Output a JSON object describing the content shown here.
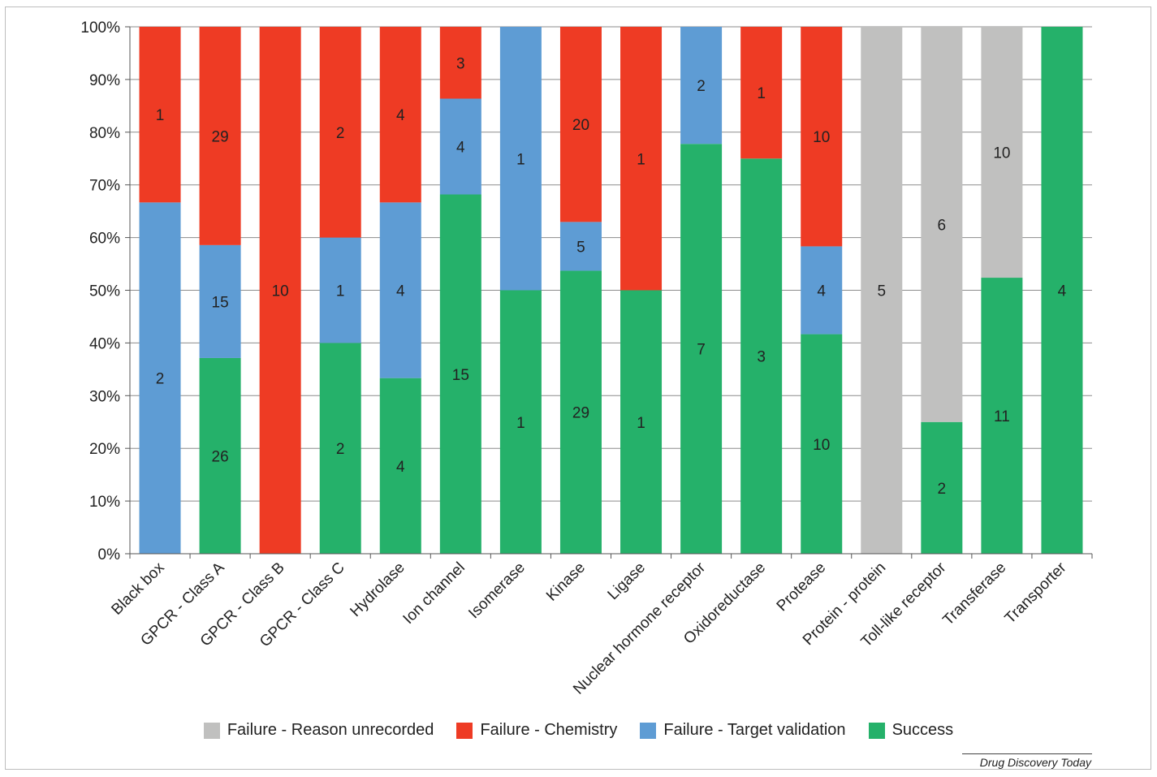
{
  "colors": {
    "unrecorded": "#c0c0bf",
    "chemistry": "#ee3b24",
    "target": "#5e9cd4",
    "success": "#25b16a"
  },
  "source": "Drug Discovery Today",
  "chart_data": {
    "type": "bar",
    "stacked": true,
    "normalized_percent": true,
    "categories": [
      "Black box",
      "GPCR - Class A",
      "GPCR - Class B",
      "GPCR - Class C",
      "Hydrolase",
      "Ion channel",
      "Isomerase",
      "Kinase",
      "Ligase",
      "Nuclear hormone receptor",
      "Oxidoreductase",
      "Protease",
      "Protein - protein",
      "Toll-like receptor",
      "Transferase",
      "Transporter"
    ],
    "series": [
      {
        "key": "success",
        "name": "Success",
        "values": [
          0,
          26,
          0,
          2,
          4,
          15,
          1,
          29,
          1,
          7,
          3,
          10,
          0,
          2,
          11,
          4
        ]
      },
      {
        "key": "target",
        "name": "Failure - Target validation",
        "values": [
          2,
          15,
          0,
          1,
          4,
          4,
          1,
          5,
          0,
          2,
          0,
          4,
          0,
          0,
          0,
          0
        ]
      },
      {
        "key": "chemistry",
        "name": "Failure - Chemistry",
        "values": [
          1,
          29,
          10,
          2,
          4,
          3,
          0,
          20,
          1,
          0,
          1,
          10,
          0,
          0,
          0,
          0
        ]
      },
      {
        "key": "unrecorded",
        "name": "Failure - Reason unrecorded",
        "values": [
          0,
          0,
          0,
          0,
          0,
          0,
          0,
          0,
          0,
          0,
          0,
          0,
          5,
          6,
          10,
          0
        ]
      }
    ],
    "legend_order": [
      "unrecorded",
      "chemistry",
      "target",
      "success"
    ],
    "yticks": [
      "0%",
      "10%",
      "20%",
      "30%",
      "40%",
      "50%",
      "60%",
      "70%",
      "80%",
      "90%",
      "100%"
    ],
    "ylim": [
      0,
      100
    ],
    "grid": true,
    "legend_position": "bottom"
  }
}
